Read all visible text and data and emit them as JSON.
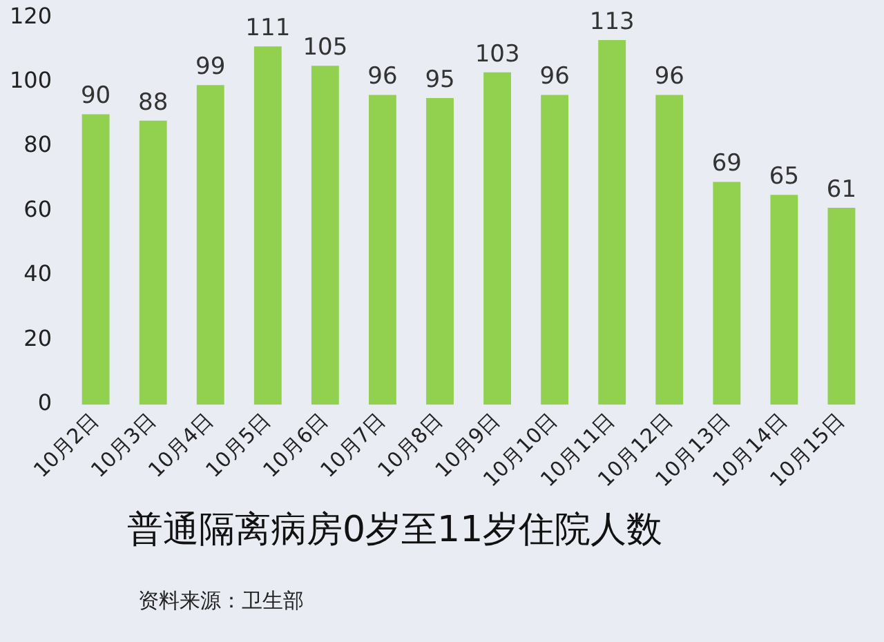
{
  "chart_data": {
    "type": "bar",
    "title": "普通隔离病房0岁至11岁住院人数",
    "categories": [
      "10月2日",
      "10月3日",
      "10月4日",
      "10月5日",
      "10月6日",
      "10月7日",
      "10月8日",
      "10月9日",
      "10月10日",
      "10月11日",
      "10月12日",
      "10月13日",
      "10月14日",
      "10月15日"
    ],
    "values": [
      90,
      88,
      99,
      111,
      105,
      96,
      95,
      103,
      96,
      113,
      96,
      69,
      65,
      61
    ],
    "color": "#92d050",
    "ylim": [
      0,
      120
    ],
    "yticks": [
      0,
      20,
      40,
      60,
      80,
      100,
      120
    ],
    "grid": false,
    "data_labels": true,
    "annotations": [
      "资料来源：卫生部"
    ]
  }
}
